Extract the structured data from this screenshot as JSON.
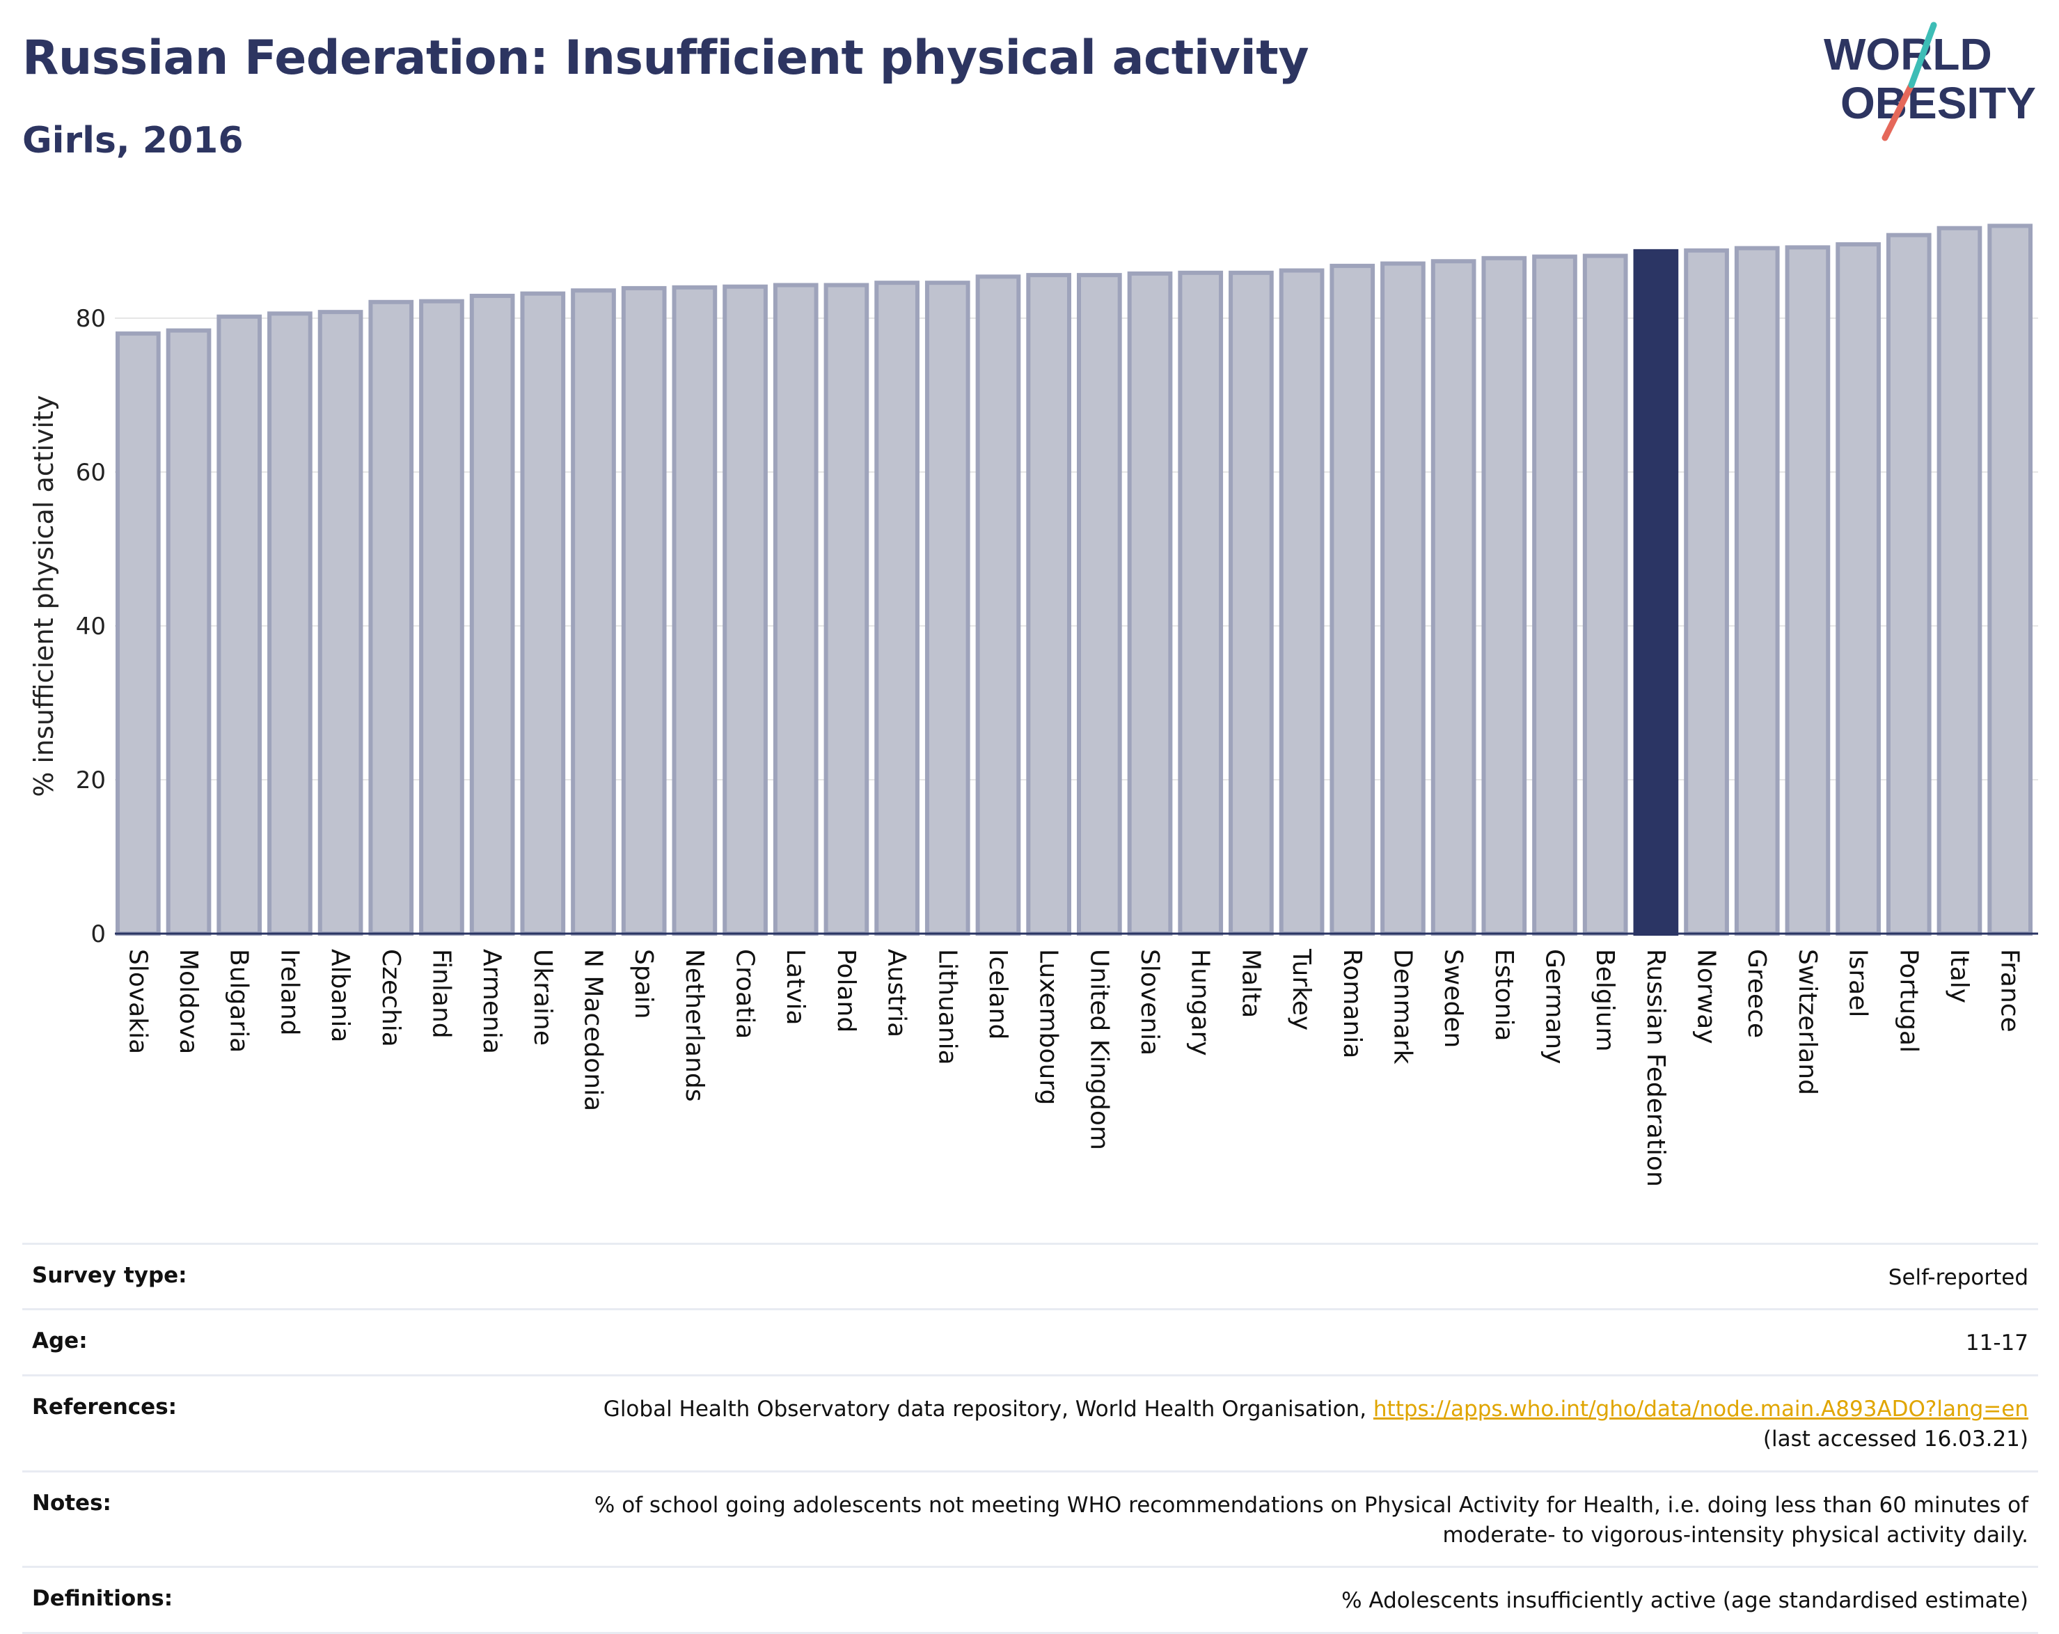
{
  "header": {
    "title": "Russian Federation: Insufficient physical activity",
    "subtitle": "Girls, 2016"
  },
  "logo": {
    "line1": "WORLD",
    "line2": "OBESITY"
  },
  "colors": {
    "bar": "#bfc2cf",
    "bar_stroke": "#9ea3bb",
    "highlight": "#2b3564",
    "title": "#2d3561",
    "link": "#e0a500"
  },
  "chart_data": {
    "type": "bar",
    "title": "Russian Federation: Insufficient physical activity",
    "subtitle": "Girls, 2016",
    "ylabel": "% insufficient physical activity",
    "xlabel": "",
    "ylim": [
      0,
      95
    ],
    "yticks": [
      0,
      20,
      40,
      60,
      80
    ],
    "grid": true,
    "highlight": "Russian Federation",
    "categories": [
      "Slovakia",
      "Moldova",
      "Bulgaria",
      "Ireland",
      "Albania",
      "Czechia",
      "Finland",
      "Armenia",
      "Ukraine",
      "N Macedonia",
      "Spain",
      "Netherlands",
      "Croatia",
      "Latvia",
      "Poland",
      "Austria",
      "Lithuania",
      "Iceland",
      "Luxembourg",
      "United Kingdom",
      "Slovenia",
      "Hungary",
      "Malta",
      "Turkey",
      "Romania",
      "Denmark",
      "Sweden",
      "Estonia",
      "Germany",
      "Belgium",
      "Russian Federation",
      "Norway",
      "Greece",
      "Switzerland",
      "Israel",
      "Portugal",
      "Italy",
      "France"
    ],
    "values": [
      78.0,
      78.4,
      80.2,
      80.6,
      80.8,
      82.1,
      82.2,
      82.9,
      83.2,
      83.6,
      83.9,
      84.0,
      84.1,
      84.3,
      84.3,
      84.6,
      84.6,
      85.4,
      85.6,
      85.6,
      85.8,
      85.9,
      85.9,
      86.2,
      86.8,
      87.1,
      87.4,
      87.8,
      88.0,
      88.1,
      88.7,
      88.8,
      89.1,
      89.2,
      89.6,
      90.8,
      91.7,
      92.0
    ]
  },
  "info": [
    {
      "key": "Survey type:",
      "value": "Self-reported"
    },
    {
      "key": "Age:",
      "value": "11-17"
    },
    {
      "key": "References:",
      "value": "Global Health Observatory data repository, World Health Organisation, ",
      "link": "https://apps.who.int/gho/data/node.main.A893ADO?lang=en",
      "value2": "(last accessed 16.03.21)"
    },
    {
      "key": "Notes:",
      "value": "% of school going adolescents not meeting WHO recommendations on Physical Activity for Health, i.e. doing less than 60 minutes of",
      "value2": "moderate- to vigorous-intensity physical activity daily."
    },
    {
      "key": "Definitions:",
      "value": "% Adolescents insufficiently active (age standardised estimate)"
    }
  ]
}
